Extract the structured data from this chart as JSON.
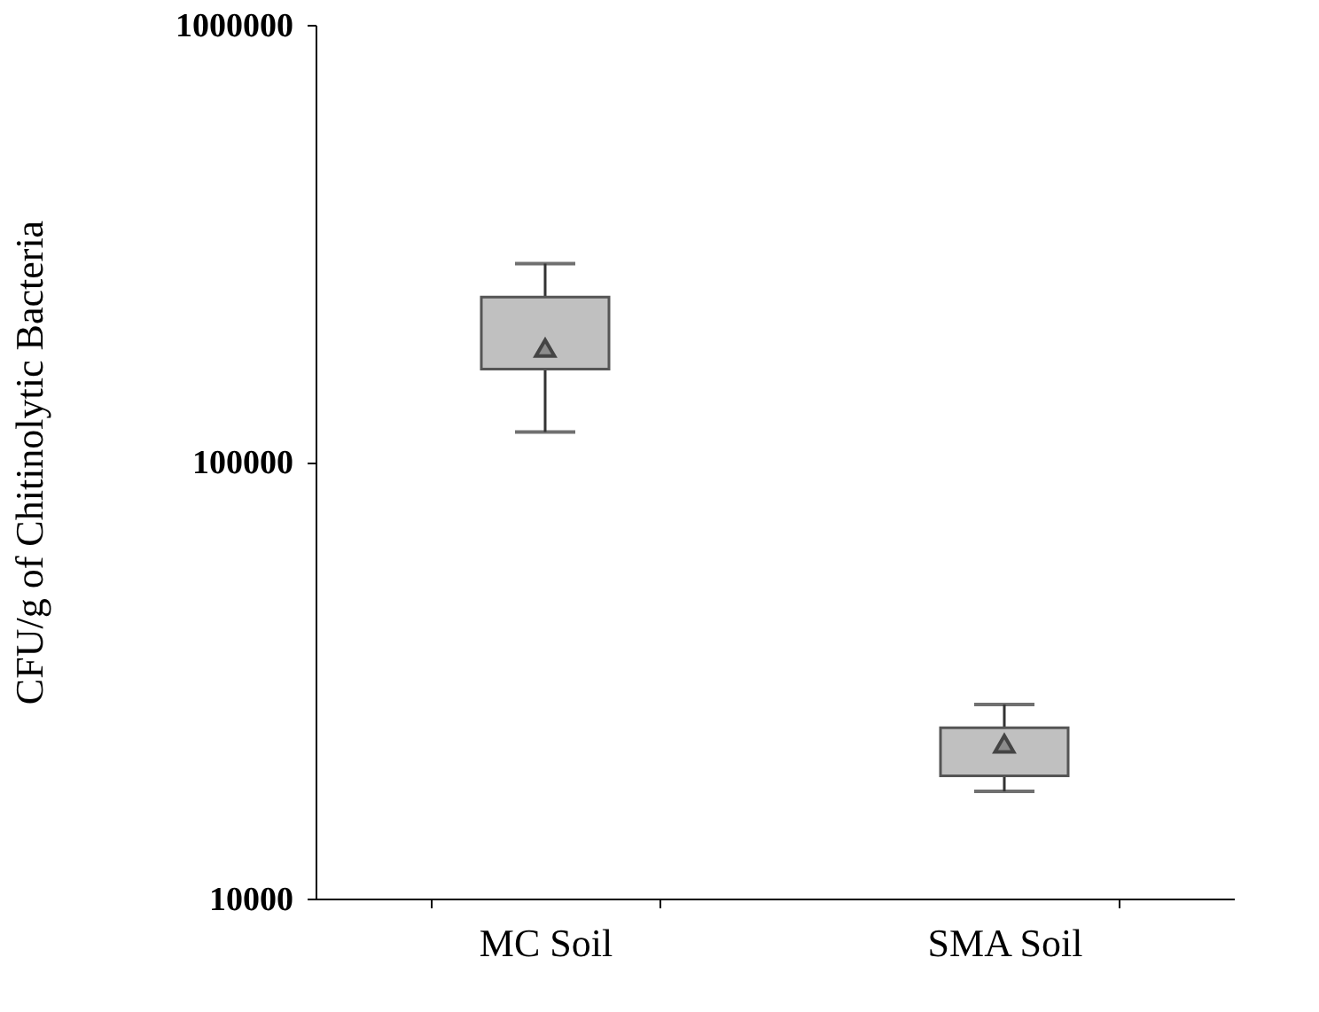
{
  "chart_data": {
    "type": "box",
    "ylabel": "CFU/g of Chitinolytic Bacteria",
    "categories": [
      "MC Soil",
      "SMA Soil"
    ],
    "boxes": [
      {
        "low": 117000,
        "q1": 163000,
        "q3": 238000,
        "high": 284000,
        "mean": 182000
      },
      {
        "low": 17600,
        "q1": 19100,
        "q3": 24600,
        "high": 27800,
        "mean": 22600
      }
    ],
    "color": "#c0c0c0",
    "log": true,
    "ylim": [
      10000,
      1000000
    ],
    "yticks": [
      10000,
      100000,
      1000000
    ],
    "grid": false,
    "marker": "triangle"
  }
}
